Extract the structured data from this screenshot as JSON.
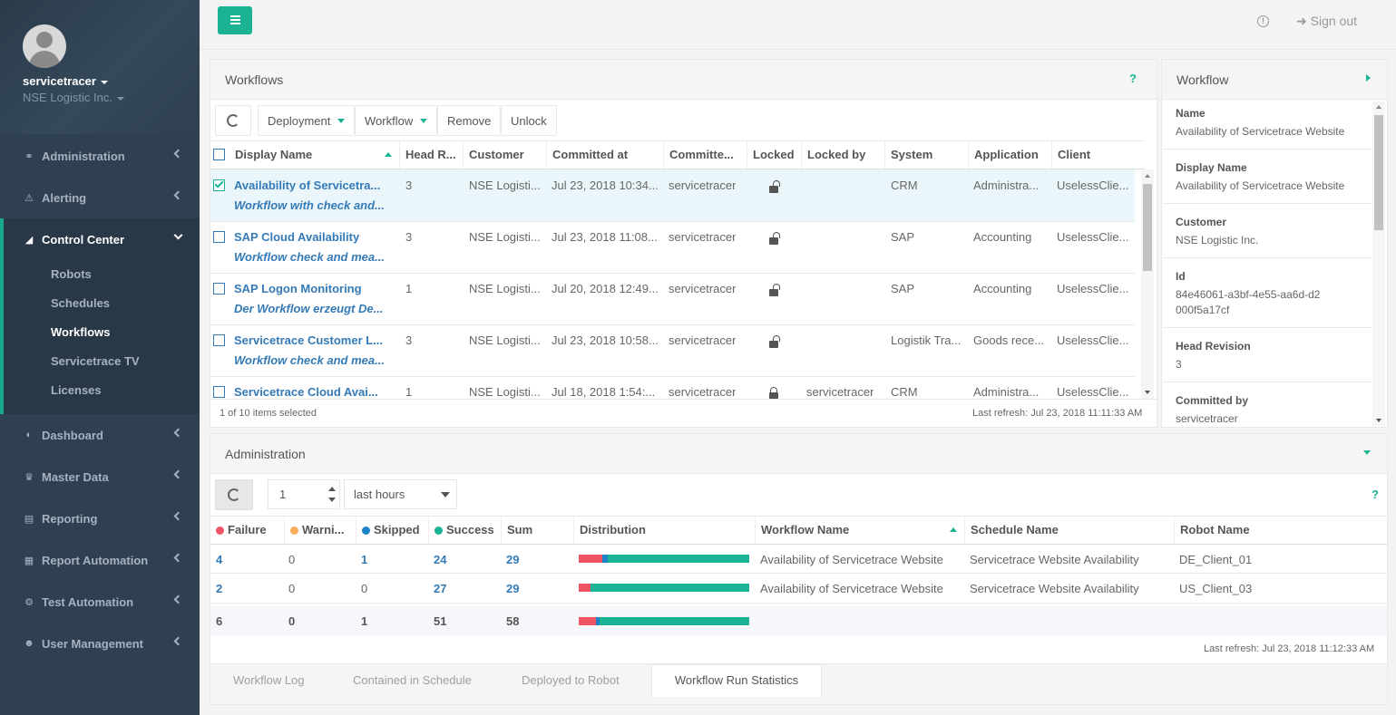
{
  "user": {
    "name": "servicetracer",
    "company": "NSE Logistic Inc."
  },
  "nav": {
    "administration": "Administration",
    "alerting": "Alerting",
    "control_center": "Control Center",
    "sub": [
      "Robots",
      "Schedules",
      "Workflows",
      "Servicetrace TV",
      "Licenses"
    ],
    "dashboard": "Dashboard",
    "master_data": "Master Data",
    "reporting": "Reporting",
    "report_automation": "Report Automation",
    "test_automation": "Test Automation",
    "user_management": "User Management"
  },
  "topbar": {
    "signout": "Sign out"
  },
  "workflows": {
    "title": "Workflows",
    "help": "?",
    "toolbar": {
      "deployment": "Deployment",
      "workflow": "Workflow",
      "remove": "Remove",
      "unlock": "Unlock"
    },
    "columns": [
      "Display Name",
      "Head R...",
      "Customer",
      "Committed at",
      "Committe...",
      "Locked",
      "Locked by",
      "System",
      "Application",
      "Client"
    ],
    "rows": [
      {
        "name": "Availability of Servicetra...",
        "desc": "Workflow with check and...",
        "head": "3",
        "customer": "NSE Logisti...",
        "committed_at": "Jul 23, 2018 10:34...",
        "committer": "servicetracer",
        "locked_by": "",
        "system": "CRM",
        "application": "Administra...",
        "client": "UselessClie...",
        "checked": true,
        "locked": false
      },
      {
        "name": "SAP Cloud Availability",
        "desc": "Workflow check and mea...",
        "head": "3",
        "customer": "NSE Logisti...",
        "committed_at": "Jul 23, 2018 11:08...",
        "committer": "servicetracer",
        "locked_by": "",
        "system": "SAP",
        "application": "Accounting",
        "client": "UselessClie...",
        "checked": false,
        "locked": false
      },
      {
        "name": "SAP Logon Monitoring",
        "desc": "Der Workflow erzeugt De...",
        "head": "1",
        "customer": "NSE Logisti...",
        "committed_at": "Jul 20, 2018 12:49...",
        "committer": "servicetracer",
        "locked_by": "",
        "system": "SAP",
        "application": "Accounting",
        "client": "UselessClie...",
        "checked": false,
        "locked": false
      },
      {
        "name": "Servicetrace Customer L...",
        "desc": "Workflow check and mea...",
        "head": "3",
        "customer": "NSE Logisti...",
        "committed_at": "Jul 23, 2018 10:58...",
        "committer": "servicetracer",
        "locked_by": "",
        "system": "Logistik Tra...",
        "application": "Goods rece...",
        "client": "UselessClie...",
        "checked": false,
        "locked": false
      },
      {
        "name": "Servicetrace Cloud Avai...",
        "desc": "",
        "head": "1",
        "customer": "NSE Logisti...",
        "committed_at": "Jul 18, 2018 1:54:...",
        "committer": "servicetracer",
        "locked_by": "servicetracer",
        "system": "CRM",
        "application": "Administra...",
        "client": "UselessClie...",
        "checked": false,
        "locked": true
      }
    ],
    "selected_info": "1 of 10 items selected",
    "last_refresh": "Last refresh: Jul 23, 2018 11:11:33 AM"
  },
  "detail": {
    "title": "Workflow",
    "fields": [
      {
        "label": "Name",
        "value": "Availability of Servicetrace Website"
      },
      {
        "label": "Display Name",
        "value": "Availability of Servicetrace Website"
      },
      {
        "label": "Customer",
        "value": "NSE Logistic Inc."
      },
      {
        "label": "Id",
        "value": "84e46061-a3bf-4e55-aa6d-d2000f5a17cf"
      },
      {
        "label": "Head Revision",
        "value": "3"
      },
      {
        "label": "Committed by",
        "value": "servicetracer"
      }
    ]
  },
  "admin": {
    "title": "Administration",
    "help": "?",
    "count": "1",
    "range": "last hours",
    "columns": [
      "Failure",
      "Warni...",
      "Skipped",
      "Success",
      "Sum",
      "Distribution",
      "Workflow Name",
      "Schedule Name",
      "Robot Name"
    ],
    "colors": {
      "failure": "#ed5565",
      "warning": "#f8ac59",
      "skipped": "#1c84c6",
      "success": "#1ab394"
    },
    "rows": [
      {
        "failure": "4",
        "warning": "0",
        "skipped": "1",
        "success": "24",
        "sum": "29",
        "workflow": "Availability of Servicetrace Website",
        "schedule": "Servicetrace Website Availability",
        "robot": "DE_Client_01"
      },
      {
        "failure": "2",
        "warning": "0",
        "skipped": "0",
        "success": "27",
        "sum": "29",
        "workflow": "Availability of Servicetrace Website",
        "schedule": "Servicetrace Website Availability",
        "robot": "US_Client_03"
      }
    ],
    "totals": {
      "failure": "6",
      "warning": "0",
      "skipped": "1",
      "success": "51",
      "sum": "58"
    },
    "last_refresh": "Last refresh: Jul 23, 2018 11:12:33 AM",
    "tabs": [
      "Workflow Log",
      "Contained in Schedule",
      "Deployed to Robot",
      "Workflow Run Statistics"
    ]
  }
}
